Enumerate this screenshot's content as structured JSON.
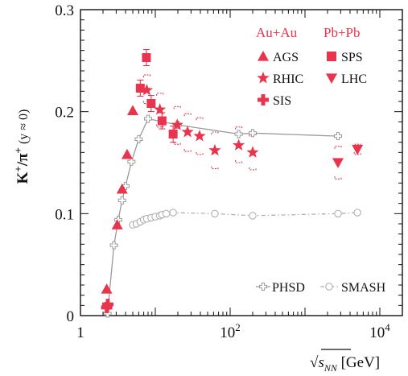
{
  "chart_data": {
    "type": "scatter",
    "title": "",
    "xlabel_prefix": "√",
    "xlabel_sqrt": "s",
    "xlabel_sub": "NN",
    "xlabel_unit": " [GeV]",
    "ylabel_main": "K",
    "ylabel_sup1": "+",
    "ylabel_mid": "/π",
    "ylabel_sup2": "+",
    "ylabel_tail": " (y ≈ 0)",
    "xscale": "log",
    "xlim": [
      1,
      20000
    ],
    "ylim": [
      0,
      0.3
    ],
    "xticks": [
      {
        "value": 1,
        "base": "1",
        "exp": ""
      },
      {
        "value": 100,
        "base": "10",
        "exp": "2"
      },
      {
        "value": 10000,
        "base": "10",
        "exp": "4"
      }
    ],
    "yticks": [
      {
        "value": 0,
        "label": "0"
      },
      {
        "value": 0.1,
        "label": "0.1"
      },
      {
        "value": 0.2,
        "label": "0.2"
      },
      {
        "value": 0.3,
        "label": "0.3"
      }
    ],
    "legend": {
      "placement": "top-right",
      "group_left": "Au+Au",
      "group_right": "Pb+Pb",
      "entries_left": [
        "AGS",
        "RHIC",
        "SIS"
      ],
      "entries_right": [
        "SPS",
        "LHC"
      ],
      "model_entries": [
        "PHSD",
        "SMASH"
      ]
    },
    "colors": {
      "experiment": "#e8344c",
      "phsd": "#9a9a9a",
      "smash": "#b0b0b0"
    },
    "series": [
      {
        "name": "SIS",
        "marker": "plus",
        "x": [
          2.32,
          2.24
        ],
        "y": [
          0.011,
          0.008
        ]
      },
      {
        "name": "AGS",
        "marker": "triangle-up",
        "x": [
          2.24,
          3.1,
          3.6,
          4.2,
          5.0
        ],
        "y": [
          0.026,
          0.089,
          0.124,
          0.158,
          0.201
        ]
      },
      {
        "name": "SPS",
        "marker": "square",
        "x": [
          6.3,
          7.6,
          8.8,
          12.3,
          17.3
        ],
        "y": [
          0.223,
          0.253,
          0.208,
          0.191,
          0.178
        ]
      },
      {
        "name": "RHIC",
        "marker": "star",
        "x": [
          7.7,
          11.5,
          19.6,
          27,
          39,
          62.4,
          130,
          200
        ],
        "y": [
          0.221,
          0.202,
          0.187,
          0.18,
          0.176,
          0.162,
          0.167,
          0.16
        ],
        "sys_low": [
          0.208,
          0.185,
          0.168,
          0.161,
          0.158,
          0.144,
          0.15,
          0.143
        ],
        "sys_high": [
          0.236,
          0.218,
          0.205,
          0.198,
          0.194,
          0.18,
          0.185,
          0.178
        ]
      },
      {
        "name": "LHC",
        "marker": "triangle-down",
        "x": [
          2760,
          5020
        ],
        "y": [
          0.15,
          0.163
        ],
        "sys_low": [
          0.134,
          0.158
        ],
        "sys_high": [
          0.166,
          0.168
        ]
      },
      {
        "name": "PHSD",
        "marker": "open-cross-line",
        "x": [
          2.3,
          2.8,
          3.2,
          3.6,
          4.0,
          4.8,
          6.0,
          8.0,
          20,
          130,
          200,
          2760
        ],
        "y": [
          0.002,
          0.069,
          0.094,
          0.113,
          0.127,
          0.151,
          0.173,
          0.193,
          0.187,
          0.178,
          0.179,
          0.176
        ]
      },
      {
        "name": "SMASH",
        "marker": "open-circle-dashdot",
        "x": [
          5.0,
          5.6,
          6.3,
          7.0,
          7.7,
          8.8,
          10,
          11.5,
          12.3,
          14,
          17.3,
          62.4,
          200,
          2760,
          5020
        ],
        "y": [
          0.089,
          0.09,
          0.092,
          0.094,
          0.095,
          0.096,
          0.097,
          0.098,
          0.099,
          0.1,
          0.101,
          0.1,
          0.098,
          0.1,
          0.101
        ]
      }
    ]
  }
}
